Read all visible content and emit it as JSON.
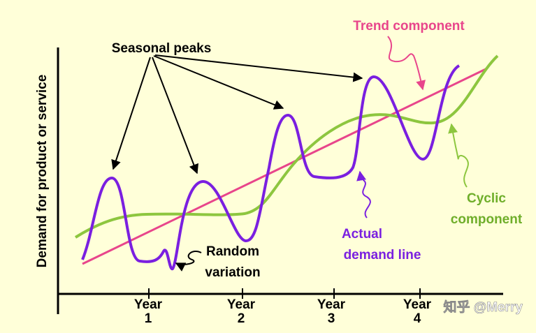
{
  "title": "Seasonal peaks",
  "y_axis_label": "Demand for product or service",
  "x_labels": [
    [
      "Year",
      "1"
    ],
    [
      "Year",
      "2"
    ],
    [
      "Year",
      "3"
    ],
    [
      "Year",
      "4"
    ]
  ],
  "annotations": {
    "trend": "Trend component",
    "random": [
      "Random",
      "variation"
    ],
    "actual": [
      "Actual",
      "demand line"
    ],
    "cyclic": [
      "Cyclic",
      "component"
    ]
  },
  "watermark": "知乎 @Merry"
}
